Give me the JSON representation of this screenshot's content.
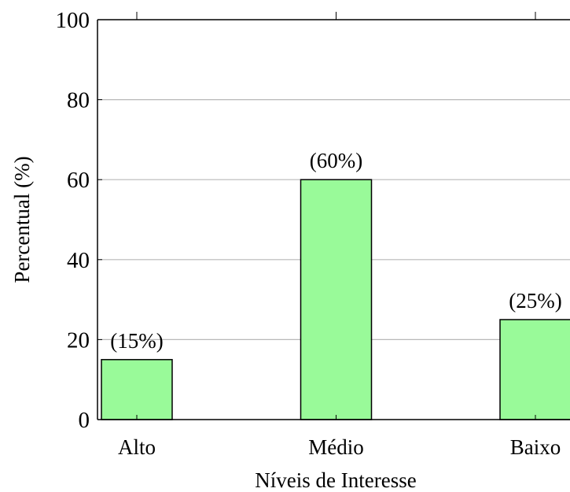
{
  "chart_data": {
    "type": "bar",
    "categories": [
      "Alto",
      "Médio",
      "Baixo"
    ],
    "values": [
      15,
      60,
      25
    ],
    "data_labels": [
      "(15%)",
      "(60%)",
      "(25%)"
    ],
    "title": "",
    "xlabel": "Níveis de Interesse",
    "ylabel": "Percentual (%)",
    "ylim": [
      0,
      100
    ],
    "yticks": [
      0,
      20,
      40,
      60,
      80,
      100
    ],
    "grid": "horizontal",
    "legend": "none",
    "colors": {
      "bar_fill": "#99fa99",
      "bar_stroke": "#000000",
      "grid": "#b8b8b8",
      "axis": "#000000"
    }
  }
}
